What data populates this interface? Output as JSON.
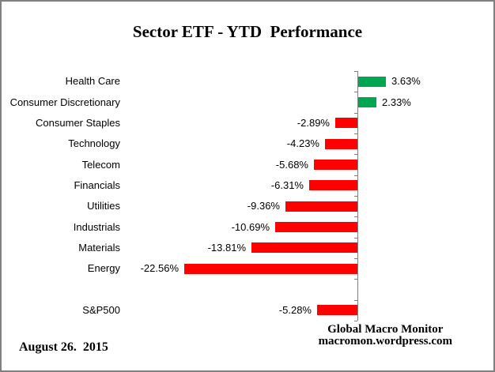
{
  "title": "Sector ETF - YTD  Performance",
  "footer": {
    "date": "August 26.  2015",
    "source_line1": "Global Macro Monitor",
    "source_line2": "macromon.wordpress.com"
  },
  "colors": {
    "positive_bar": "#00A651",
    "negative_bar": "#FF0000",
    "axis": "#808080",
    "border": "#808080",
    "text": "#000000"
  },
  "chart_data": {
    "type": "bar",
    "orientation": "horizontal",
    "title": "Sector ETF - YTD  Performance",
    "xlabel": "",
    "ylabel": "",
    "axis_value": 0,
    "grid": false,
    "legend": false,
    "value_unit": "%",
    "series": [
      {
        "category": "Health Care",
        "value": 3.63,
        "label": "3.63%",
        "slot": 0
      },
      {
        "category": "Consumer Discretionary",
        "value": 2.33,
        "label": "2.33%",
        "slot": 1
      },
      {
        "category": "Consumer Staples",
        "value": -2.89,
        "label": "-2.89%",
        "slot": 2
      },
      {
        "category": "Technology",
        "value": -4.23,
        "label": "-4.23%",
        "slot": 3
      },
      {
        "category": "Telecom",
        "value": -5.68,
        "label": "-5.68%",
        "slot": 4
      },
      {
        "category": "Financials",
        "value": -6.31,
        "label": "-6.31%",
        "slot": 5
      },
      {
        "category": "Utilities",
        "value": -9.36,
        "label": "-9.36%",
        "slot": 6
      },
      {
        "category": "Industrials",
        "value": -10.69,
        "label": "-10.69%",
        "slot": 7
      },
      {
        "category": "Materials",
        "value": -13.81,
        "label": "-13.81%",
        "slot": 8
      },
      {
        "category": "Energy",
        "value": -22.56,
        "label": "-22.56%",
        "slot": 9
      },
      {
        "category": "S&P500",
        "value": -5.28,
        "label": "-5.28%",
        "slot": 11
      }
    ],
    "layout_hints": {
      "slots_total": 12,
      "blank_slot_index": 10,
      "value_axis_range_note": "bars scaled ~9.7px per percent, zero axis near x=450"
    }
  }
}
